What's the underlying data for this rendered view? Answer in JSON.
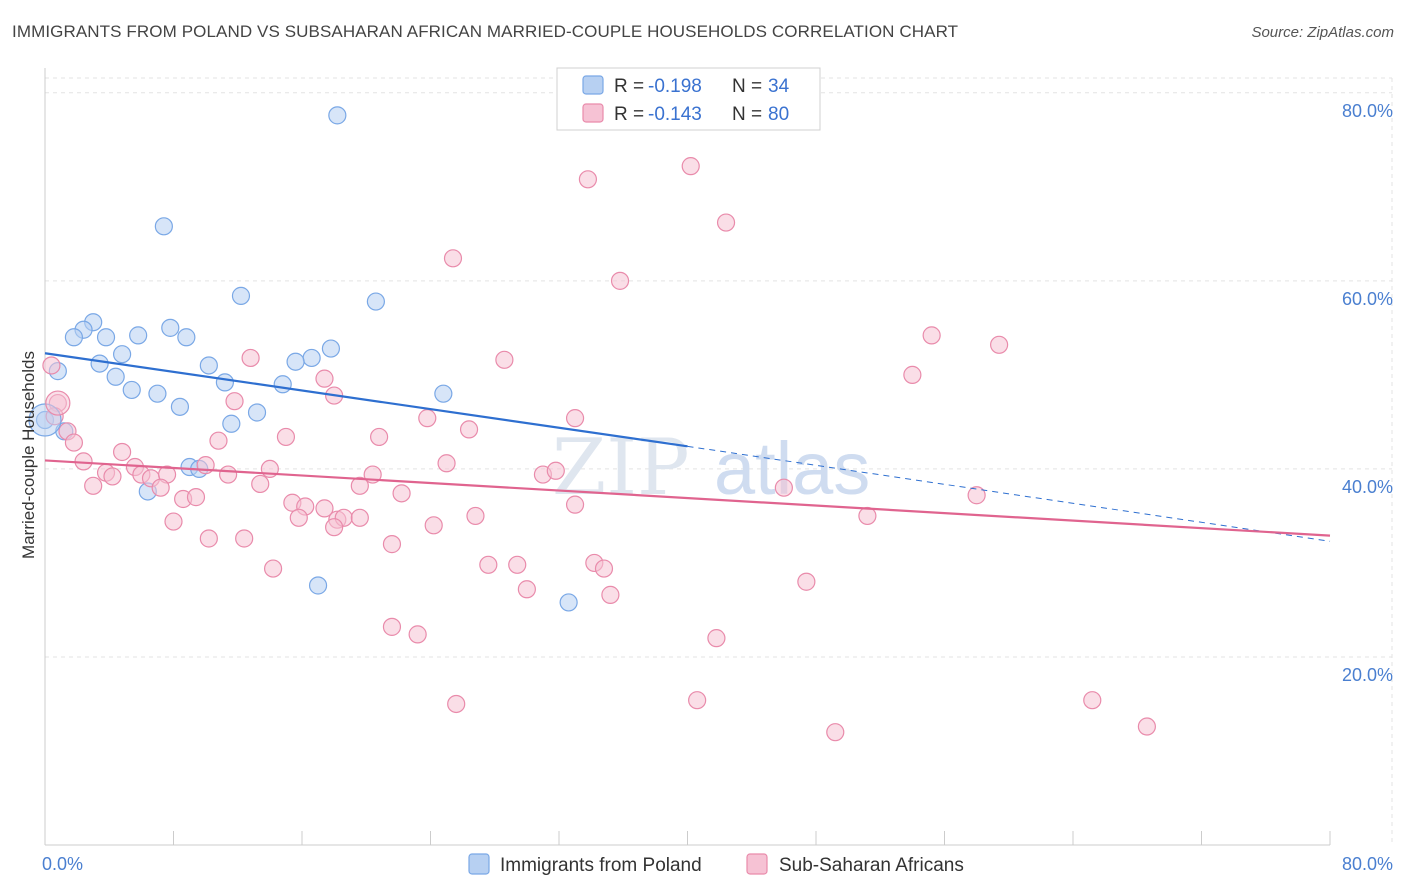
{
  "title": "IMMIGRANTS FROM POLAND VS SUBSAHARAN AFRICAN MARRIED-COUPLE HOUSEHOLDS CORRELATION CHART",
  "source": "Source: ZipAtlas.com",
  "watermark": {
    "part1": "ZIP",
    "part2": "atlas"
  },
  "chart_data": {
    "type": "scatter",
    "xlabel": "",
    "ylabel": "Married-couple Households",
    "xlim": [
      0,
      80
    ],
    "ylim": [
      0,
      82
    ],
    "x_tick_labels": [
      {
        "value": 0,
        "label": "0.0%"
      },
      {
        "value": 80,
        "label": "80.0%"
      }
    ],
    "y_tick_labels": [
      {
        "value": 20,
        "label": "20.0%"
      },
      {
        "value": 40,
        "label": "40.0%"
      },
      {
        "value": 60,
        "label": "60.0%"
      },
      {
        "value": 80,
        "label": "80.0%"
      }
    ],
    "grid": true,
    "legend_position": "top-center",
    "series": [
      {
        "name": "Immigrants from Poland",
        "color": "#7aa8e6",
        "fill": "#b7d0f2",
        "R": "-0.198",
        "N": "34",
        "trend": {
          "x0": 0,
          "y0": 52.3,
          "x1": 40,
          "y1": 42.4,
          "dashed_to_x": 80,
          "dashed_to_y": 32.3,
          "color": "#2e6fd0"
        },
        "points": [
          [
            18.2,
            77.6
          ],
          [
            7.4,
            65.8
          ],
          [
            12.2,
            58.4
          ],
          [
            20.6,
            57.8
          ],
          [
            3.0,
            55.6
          ],
          [
            2.4,
            54.8
          ],
          [
            7.8,
            55.0
          ],
          [
            1.8,
            54.0
          ],
          [
            3.8,
            54.0
          ],
          [
            5.8,
            54.2
          ],
          [
            8.8,
            54.0
          ],
          [
            17.8,
            52.8
          ],
          [
            4.8,
            52.2
          ],
          [
            16.6,
            51.8
          ],
          [
            15.6,
            51.4
          ],
          [
            3.4,
            51.2
          ],
          [
            10.2,
            51.0
          ],
          [
            0.8,
            50.4
          ],
          [
            4.4,
            49.8
          ],
          [
            11.2,
            49.2
          ],
          [
            14.8,
            49.0
          ],
          [
            5.4,
            48.4
          ],
          [
            7.0,
            48.0
          ],
          [
            24.8,
            48.0
          ],
          [
            8.4,
            46.6
          ],
          [
            13.2,
            46.0
          ],
          [
            11.6,
            44.8
          ],
          [
            1.2,
            44.0
          ],
          [
            0.0,
            45.2
          ],
          [
            9.0,
            40.2
          ],
          [
            9.6,
            40.0
          ],
          [
            6.4,
            37.6
          ],
          [
            17.0,
            27.6
          ],
          [
            32.6,
            25.8
          ]
        ]
      },
      {
        "name": "Sub-Saharan Africans",
        "color": "#e98bab",
        "fill": "#f6c2d4",
        "R": "-0.143",
        "N": "80",
        "trend": {
          "x0": 0,
          "y0": 40.9,
          "x1": 80,
          "y1": 32.9,
          "color": "#e0648f"
        },
        "points": [
          [
            40.2,
            72.2
          ],
          [
            33.8,
            70.8
          ],
          [
            42.4,
            66.2
          ],
          [
            25.4,
            62.4
          ],
          [
            35.8,
            60.0
          ],
          [
            55.2,
            54.2
          ],
          [
            59.4,
            53.2
          ],
          [
            12.8,
            51.8
          ],
          [
            28.6,
            51.6
          ],
          [
            0.4,
            51.0
          ],
          [
            54.0,
            50.0
          ],
          [
            17.4,
            49.6
          ],
          [
            18.0,
            47.8
          ],
          [
            11.8,
            47.2
          ],
          [
            0.8,
            47.0
          ],
          [
            23.8,
            45.4
          ],
          [
            33.0,
            45.4
          ],
          [
            26.4,
            44.2
          ],
          [
            1.4,
            44.0
          ],
          [
            15.0,
            43.4
          ],
          [
            20.8,
            43.4
          ],
          [
            10.8,
            43.0
          ],
          [
            1.8,
            42.8
          ],
          [
            4.8,
            41.8
          ],
          [
            2.4,
            40.8
          ],
          [
            25.0,
            40.6
          ],
          [
            5.6,
            40.2
          ],
          [
            10.0,
            40.4
          ],
          [
            14.0,
            40.0
          ],
          [
            3.8,
            39.6
          ],
          [
            4.2,
            39.2
          ],
          [
            6.0,
            39.4
          ],
          [
            6.6,
            39.0
          ],
          [
            7.6,
            39.4
          ],
          [
            11.4,
            39.4
          ],
          [
            20.4,
            39.4
          ],
          [
            31.0,
            39.4
          ],
          [
            31.8,
            39.8
          ],
          [
            3.0,
            38.2
          ],
          [
            7.2,
            38.0
          ],
          [
            13.4,
            38.4
          ],
          [
            19.6,
            38.2
          ],
          [
            46.0,
            38.0
          ],
          [
            22.2,
            37.4
          ],
          [
            58.0,
            37.2
          ],
          [
            8.6,
            36.8
          ],
          [
            9.4,
            37.0
          ],
          [
            15.4,
            36.4
          ],
          [
            16.2,
            36.0
          ],
          [
            17.4,
            35.8
          ],
          [
            33.0,
            36.2
          ],
          [
            8.0,
            34.4
          ],
          [
            15.8,
            34.8
          ],
          [
            18.2,
            34.6
          ],
          [
            18.6,
            34.8
          ],
          [
            19.6,
            34.8
          ],
          [
            26.8,
            35.0
          ],
          [
            51.2,
            35.0
          ],
          [
            18.0,
            33.8
          ],
          [
            24.2,
            34.0
          ],
          [
            10.2,
            32.6
          ],
          [
            12.4,
            32.6
          ],
          [
            21.6,
            32.0
          ],
          [
            34.2,
            30.0
          ],
          [
            27.6,
            29.8
          ],
          [
            29.4,
            29.8
          ],
          [
            34.8,
            29.4
          ],
          [
            14.2,
            29.4
          ],
          [
            47.4,
            28.0
          ],
          [
            30.0,
            27.2
          ],
          [
            35.2,
            26.6
          ],
          [
            21.6,
            23.2
          ],
          [
            23.2,
            22.4
          ],
          [
            41.8,
            22.0
          ],
          [
            25.6,
            15.0
          ],
          [
            40.6,
            15.4
          ],
          [
            49.2,
            12.0
          ],
          [
            65.2,
            15.4
          ],
          [
            68.6,
            12.6
          ],
          [
            0.6,
            45.6
          ]
        ]
      }
    ]
  }
}
